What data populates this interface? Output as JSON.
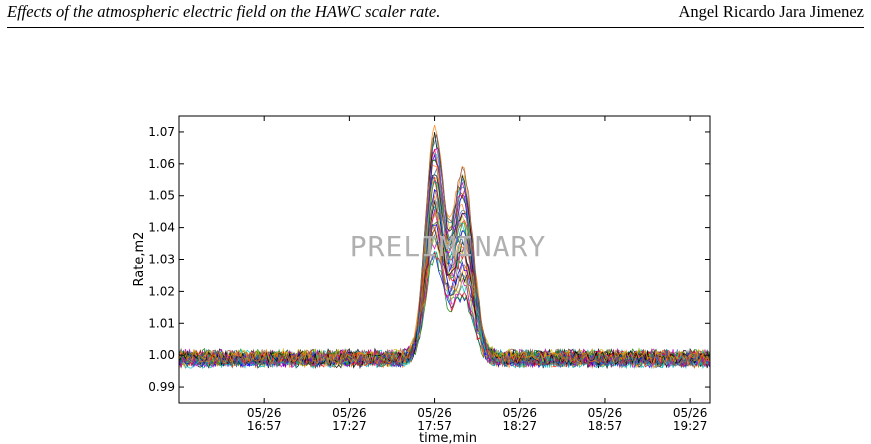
{
  "header": {
    "title": "Effects of the atmospheric electric field on the HAWC scaler rate.",
    "author": "Angel Ricardo Jara Jimenez"
  },
  "figure": {
    "watermark": "PRELIMINARY"
  },
  "chart_data": {
    "type": "line",
    "title": "",
    "xlabel": "time,min",
    "ylabel": "Rate,m2",
    "xlim_minutes_after_16_27": [
      0,
      187
    ],
    "ylim": [
      0.985,
      1.075
    ],
    "x_ticks": [
      {
        "date": "05/26",
        "time": "16:57"
      },
      {
        "date": "05/26",
        "time": "17:27"
      },
      {
        "date": "05/26",
        "time": "17:57"
      },
      {
        "date": "05/26",
        "time": "18:27"
      },
      {
        "date": "05/26",
        "time": "18:57"
      },
      {
        "date": "05/26",
        "time": "19:27"
      }
    ],
    "y_ticks": [
      "0.99",
      "1.00",
      "1.01",
      "1.02",
      "1.03",
      "1.04",
      "1.05",
      "1.06",
      "1.07"
    ],
    "grid": false,
    "legend": "none",
    "series_count": 40,
    "series_colors": [
      "#0000ff",
      "#008000",
      "#ff0000",
      "#00bfbf",
      "#bf00bf",
      "#bfbf00",
      "#000000",
      "#1f77b4",
      "#ff7f0e",
      "#8c564b"
    ],
    "envelope": {
      "baseline": 0.999,
      "baseline_noise": 0.003,
      "peaks": [
        {
          "time": "17:57",
          "max": 1.07,
          "min": 1.03
        },
        {
          "time": "18:07",
          "max": 1.058,
          "min": 1.018
        }
      ],
      "dip_between_peaks": {
        "max": 1.05,
        "min": 1.007
      }
    }
  }
}
